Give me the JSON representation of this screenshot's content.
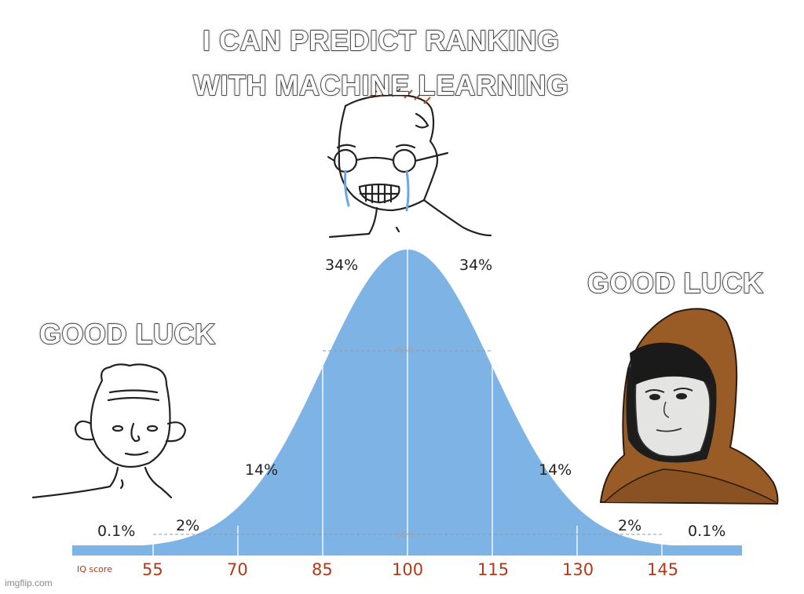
{
  "meme": {
    "top_caption_line1": "I CAN PREDICT RANKING",
    "top_caption_line2": "WITH MACHINE LEARNING",
    "left_caption": "GOOD LUCK",
    "right_caption": "GOOD LUCK",
    "watermark": "imgflip.com"
  },
  "bell_curve": {
    "axis_label": "IQ score",
    "ticks": [
      "55",
      "70",
      "85",
      "100",
      "115",
      "130",
      "145"
    ],
    "percent_labels": {
      "far_left": "0.1%",
      "left_tail": "2%",
      "left_mid": "14%",
      "left_center": "34%",
      "right_center": "34%",
      "right_mid": "14%",
      "right_tail": "2%",
      "far_right": "0.1%"
    },
    "band_68": "68%",
    "band_95": "95%",
    "fill_color": "#7eb3e6"
  }
}
